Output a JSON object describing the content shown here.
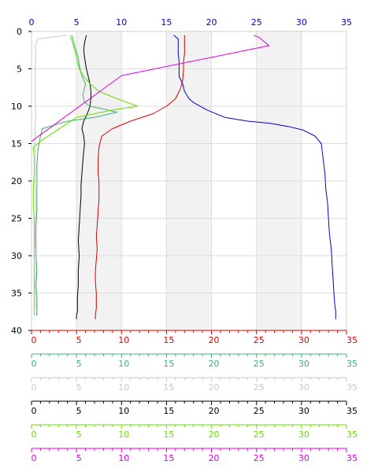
{
  "chart_data": {
    "type": "line",
    "title": "",
    "orientation": "vertical-profile",
    "y_axis": {
      "label": "",
      "range": [
        0,
        40
      ],
      "inverted": true,
      "ticks": [
        0,
        5,
        10,
        15,
        20,
        25,
        30,
        35,
        40
      ],
      "color": "#000000"
    },
    "top_axis": {
      "series_ref": "blue",
      "range": [
        0,
        35
      ],
      "ticks": [
        0,
        5,
        10,
        15,
        20,
        25,
        30,
        35
      ],
      "color": "#0000cc"
    },
    "bottom_axes": [
      {
        "series_ref": "red",
        "range": [
          0,
          35
        ],
        "ticks": [
          0,
          5,
          10,
          15,
          20,
          25,
          30,
          35
        ],
        "color": "#dd0000"
      },
      {
        "series_ref": "mediumseagreen",
        "range": [
          0,
          35
        ],
        "ticks": [
          0,
          5,
          10,
          15,
          20,
          25,
          30,
          35
        ],
        "color": "#3cb371"
      },
      {
        "series_ref": "lightgray",
        "range": [
          0,
          35
        ],
        "ticks": [
          0,
          5,
          10,
          15,
          20,
          25,
          30,
          35
        ],
        "color": "#c8c8c8"
      },
      {
        "series_ref": "black",
        "range": [
          0,
          35
        ],
        "ticks": [
          0,
          5,
          10,
          15,
          20,
          25,
          30,
          35
        ],
        "color": "#000000"
      },
      {
        "series_ref": "lawngreen",
        "range": [
          0,
          35
        ],
        "ticks": [
          0,
          5,
          10,
          15,
          20,
          25,
          30,
          35
        ],
        "color": "#66dd00"
      },
      {
        "series_ref": "magenta",
        "range": [
          0,
          35
        ],
        "ticks": [
          0,
          5,
          10,
          15,
          20,
          25,
          30,
          35
        ],
        "color": "#dd00dd"
      }
    ],
    "grid": true,
    "shaded_bands_x": [
      [
        5,
        10
      ],
      [
        15,
        20
      ],
      [
        25,
        30
      ]
    ],
    "series": [
      {
        "id": "blue",
        "color": "#0000cc",
        "x": [
          15.8,
          16.3,
          16.3,
          16.3,
          16.4,
          16.4,
          16.8,
          17.0,
          17.5,
          18.0,
          19.5,
          21.5,
          24.0,
          26.5,
          28.5,
          30.2,
          31.5,
          32.2,
          32.4,
          32.6,
          32.7,
          32.9,
          33.0,
          33.1,
          33.2,
          33.3,
          33.4,
          33.5,
          33.6,
          33.7,
          33.8,
          33.8
        ],
        "y": [
          0.5,
          1.0,
          2.0,
          3.0,
          4.0,
          6.0,
          7.0,
          8.0,
          9.0,
          9.5,
          10.5,
          11.5,
          12.0,
          12.3,
          12.7,
          13.2,
          14.0,
          15.0,
          17.0,
          19.0,
          21.0,
          23.0,
          25.0,
          27.0,
          28.0,
          29.0,
          31.0,
          33.0,
          35.0,
          36.5,
          37.5,
          38.5
        ]
      },
      {
        "id": "red",
        "color": "#dd0000",
        "x": [
          17.0,
          17.0,
          17.0,
          17.0,
          16.9,
          16.9,
          16.8,
          16.6,
          16.0,
          15.0,
          13.5,
          11.0,
          9.0,
          7.8,
          7.5,
          7.4,
          7.4,
          7.5,
          7.5,
          7.5,
          7.4,
          7.3,
          7.2,
          7.3,
          7.2,
          7.1,
          7.1,
          7.2,
          7.2,
          7.2,
          7.1,
          7.1
        ],
        "y": [
          0.5,
          1.0,
          2.0,
          3.0,
          4.0,
          5.0,
          6.5,
          7.5,
          9.0,
          10.0,
          11.0,
          12.0,
          13.0,
          14.0,
          15.5,
          17.0,
          19.0,
          20.0,
          21.0,
          22.5,
          24.0,
          26.0,
          27.5,
          29.0,
          30.5,
          32.0,
          33.5,
          35.0,
          36.0,
          37.0,
          38.0,
          38.5
        ]
      },
      {
        "id": "black",
        "color": "#000000",
        "x": [
          6.1,
          5.9,
          5.8,
          5.9,
          6.1,
          6.3,
          6.5,
          6.6,
          6.6,
          6.5,
          6.2,
          5.8,
          5.6,
          5.8,
          5.9,
          5.8,
          5.7,
          5.6,
          5.5,
          5.5,
          5.4,
          5.3,
          5.2,
          5.3,
          5.2,
          5.2,
          5.1,
          5.1,
          5.1,
          5.0,
          5.0
        ],
        "y": [
          0.5,
          1.5,
          2.5,
          3.5,
          5.0,
          6.0,
          7.0,
          8.0,
          9.0,
          10.0,
          11.0,
          12.0,
          13.0,
          14.0,
          15.0,
          16.0,
          17.5,
          19.0,
          20.5,
          22.0,
          24.0,
          26.0,
          28.0,
          30.0,
          32.0,
          34.0,
          35.5,
          36.5,
          37.5,
          38.0,
          38.5
        ]
      },
      {
        "id": "lightgray",
        "color": "#c8c8c8",
        "x": [
          3.9,
          0.7,
          0.4,
          0.5,
          0.4,
          0.4,
          0.4,
          0.4,
          0.5,
          0.4,
          0.4,
          0.4,
          0.5,
          0.4,
          0.5,
          0.5,
          0.4,
          0.4,
          0.5,
          0.5,
          0.4,
          0.5,
          0.5,
          0.6,
          0.5
        ],
        "y": [
          0.5,
          1.0,
          2.0,
          3.0,
          5.0,
          6.5,
          8.0,
          9.5,
          11.0,
          12.5,
          14.0,
          16.0,
          18.0,
          20.0,
          22.0,
          24.0,
          26.0,
          28.0,
          30.0,
          32.0,
          34.0,
          35.5,
          36.5,
          37.5,
          38.0
        ]
      },
      {
        "id": "mediumseagreen",
        "color": "#3cb371",
        "x": [
          4.5,
          4.8,
          5.2,
          5.3,
          5.6,
          6.0,
          5.8,
          5.7,
          5.9,
          6.5,
          8.5,
          9.5,
          7.0,
          4.0,
          1.2,
          0.9,
          0.7,
          0.6,
          0.6,
          0.6,
          0.6,
          0.5,
          0.5,
          0.5,
          0.6,
          0.5,
          0.6,
          0.6,
          0.6,
          0.6,
          0.6
        ],
        "y": [
          0.5,
          2.0,
          3.5,
          4.5,
          6.0,
          7.0,
          8.0,
          8.5,
          9.5,
          10.0,
          10.5,
          10.8,
          11.5,
          12.0,
          13.0,
          14.5,
          16.0,
          18.0,
          20.0,
          22.0,
          24.0,
          26.0,
          28.0,
          30.0,
          32.0,
          34.0,
          35.5,
          36.5,
          37.0,
          37.5,
          38.0
        ]
      },
      {
        "id": "lawngreen",
        "color": "#66dd00",
        "x": [
          4.3,
          4.7,
          5.0,
          5.3,
          5.8,
          6.5,
          7.5,
          9.5,
          11.8,
          9.0,
          5.0,
          1.2,
          0.2,
          0.3,
          0.3,
          0.2,
          0.2,
          0.3,
          0.3,
          0.3,
          0.3,
          0.3,
          0.3,
          0.3,
          0.3,
          0.3
        ],
        "y": [
          0.5,
          2.0,
          3.5,
          5.0,
          6.0,
          7.0,
          8.0,
          9.0,
          10.0,
          10.5,
          11.5,
          14.5,
          15.5,
          17.0,
          19.0,
          21.0,
          23.0,
          25.0,
          27.0,
          29.0,
          31.0,
          33.0,
          34.5,
          36.0,
          37.0,
          38.0
        ]
      },
      {
        "id": "magenta",
        "color": "#dd00dd",
        "x": [
          24.7,
          25.3,
          26.4,
          10.0,
          0.0
        ],
        "y": [
          0.5,
          0.8,
          1.9,
          5.9,
          14.7
        ]
      }
    ]
  }
}
